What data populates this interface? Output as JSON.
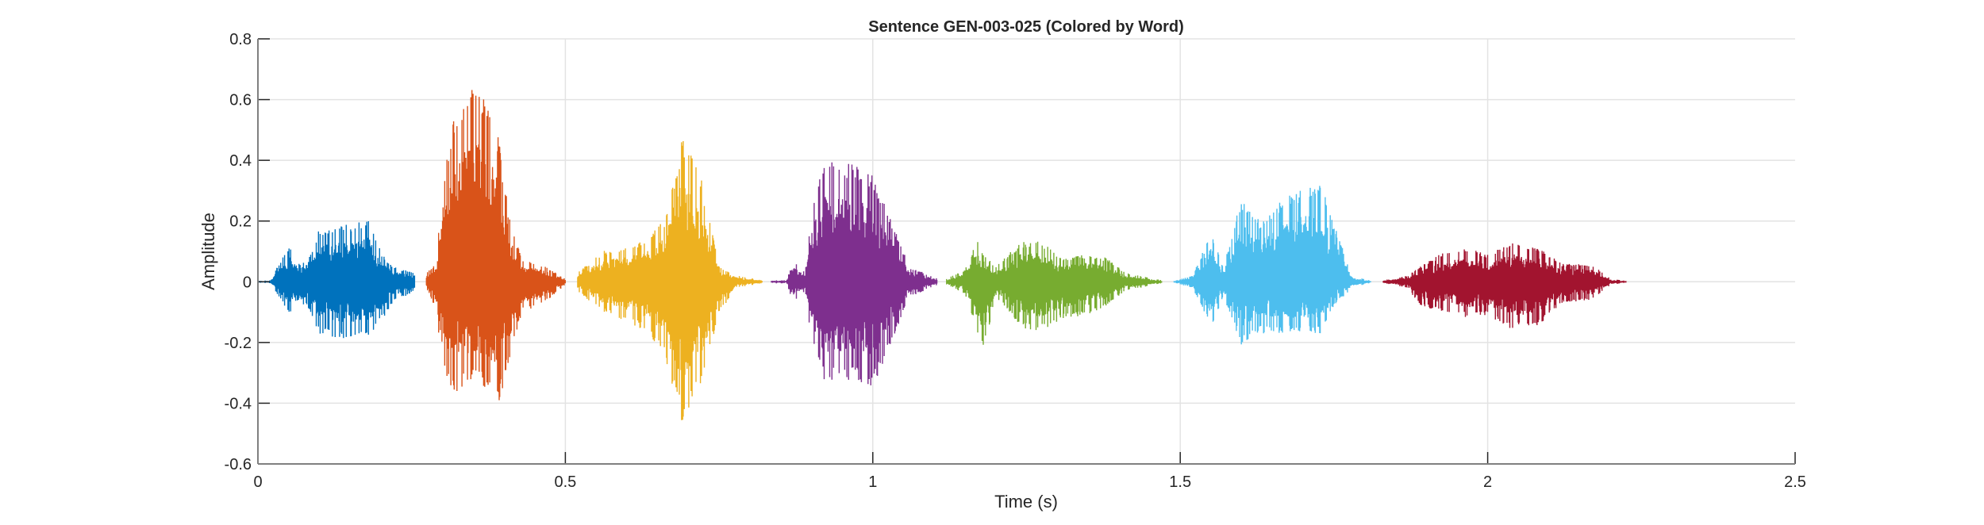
{
  "chart_data": {
    "type": "line",
    "title": "Sentence GEN-003-025 (Colored by Word)",
    "xlabel": "Time (s)",
    "ylabel": "Amplitude",
    "xlim": [
      0,
      2.5
    ],
    "ylim": [
      -0.6,
      0.8
    ],
    "xticks": [
      0,
      0.5,
      1,
      1.5,
      2,
      2.5
    ],
    "xtick_labels": [
      "0",
      "0.5",
      "1",
      "1.5",
      "2",
      "2.5"
    ],
    "yticks": [
      -0.6,
      -0.4,
      -0.2,
      0,
      0.2,
      0.4,
      0.6,
      0.8
    ],
    "ytick_labels": [
      "-0.6",
      "-0.4",
      "-0.2",
      "0",
      "0.2",
      "0.4",
      "0.6",
      "0.8"
    ],
    "grid": true,
    "legend": "none",
    "series": [
      {
        "color": "#0072BD",
        "start": 0.0,
        "end": 0.255,
        "envelope": [
          [
            0,
            0.003,
            -0.003
          ],
          [
            0.02,
            0.005,
            -0.005
          ],
          [
            0.05,
            0.12,
            -0.1
          ],
          [
            0.08,
            0.06,
            -0.08
          ],
          [
            0.1,
            0.18,
            -0.17
          ],
          [
            0.15,
            0.19,
            -0.2
          ],
          [
            0.18,
            0.21,
            -0.18
          ],
          [
            0.2,
            0.1,
            -0.13
          ],
          [
            0.22,
            0.05,
            -0.07
          ],
          [
            0.255,
            0.03,
            -0.03
          ]
        ]
      },
      {
        "color": "#D95319",
        "start": 0.274,
        "end": 0.5,
        "envelope": [
          [
            0.274,
            0.03,
            -0.02
          ],
          [
            0.29,
            0.06,
            -0.1
          ],
          [
            0.3,
            0.35,
            -0.3
          ],
          [
            0.32,
            0.55,
            -0.37
          ],
          [
            0.35,
            0.68,
            -0.33
          ],
          [
            0.37,
            0.63,
            -0.35
          ],
          [
            0.39,
            0.5,
            -0.42
          ],
          [
            0.41,
            0.2,
            -0.25
          ],
          [
            0.43,
            0.07,
            -0.1
          ],
          [
            0.46,
            0.06,
            -0.08
          ],
          [
            0.5,
            0.01,
            -0.01
          ]
        ]
      },
      {
        "color": "#EDB120",
        "start": 0.52,
        "end": 0.82,
        "envelope": [
          [
            0.52,
            0.03,
            -0.03
          ],
          [
            0.56,
            0.1,
            -0.1
          ],
          [
            0.62,
            0.13,
            -0.15
          ],
          [
            0.66,
            0.2,
            -0.23
          ],
          [
            0.69,
            0.48,
            -0.47
          ],
          [
            0.72,
            0.35,
            -0.35
          ],
          [
            0.75,
            0.05,
            -0.1
          ],
          [
            0.78,
            0.02,
            -0.02
          ],
          [
            0.82,
            0.005,
            -0.005
          ]
        ]
      },
      {
        "color": "#7E2F8E",
        "start": 0.835,
        "end": 1.105,
        "envelope": [
          [
            0.835,
            0.005,
            -0.005
          ],
          [
            0.86,
            0.005,
            -0.005
          ],
          [
            0.87,
            0.07,
            -0.07
          ],
          [
            0.89,
            0.03,
            -0.03
          ],
          [
            0.9,
            0.25,
            -0.2
          ],
          [
            0.92,
            0.4,
            -0.33
          ],
          [
            0.95,
            0.4,
            -0.33
          ],
          [
            0.98,
            0.38,
            -0.33
          ],
          [
            1.0,
            0.35,
            -0.35
          ],
          [
            1.03,
            0.2,
            -0.2
          ],
          [
            1.06,
            0.05,
            -0.05
          ],
          [
            1.105,
            0.01,
            -0.01
          ]
        ]
      },
      {
        "color": "#77AC30",
        "start": 1.12,
        "end": 1.47,
        "envelope": [
          [
            1.12,
            0.01,
            -0.01
          ],
          [
            1.15,
            0.04,
            -0.04
          ],
          [
            1.17,
            0.14,
            -0.17
          ],
          [
            1.18,
            0.1,
            -0.23
          ],
          [
            1.2,
            0.05,
            -0.05
          ],
          [
            1.24,
            0.13,
            -0.15
          ],
          [
            1.27,
            0.14,
            -0.17
          ],
          [
            1.31,
            0.08,
            -0.12
          ],
          [
            1.35,
            0.09,
            -0.11
          ],
          [
            1.38,
            0.08,
            -0.08
          ],
          [
            1.41,
            0.03,
            -0.03
          ],
          [
            1.47,
            0.005,
            -0.005
          ]
        ]
      },
      {
        "color": "#4DBEEE",
        "start": 1.49,
        "end": 1.81,
        "envelope": [
          [
            1.49,
            0.003,
            -0.003
          ],
          [
            1.52,
            0.02,
            -0.02
          ],
          [
            1.55,
            0.16,
            -0.15
          ],
          [
            1.57,
            0.05,
            -0.05
          ],
          [
            1.6,
            0.28,
            -0.21
          ],
          [
            1.63,
            0.2,
            -0.17
          ],
          [
            1.68,
            0.3,
            -0.17
          ],
          [
            1.73,
            0.32,
            -0.17
          ],
          [
            1.75,
            0.19,
            -0.08
          ],
          [
            1.78,
            0.02,
            -0.02
          ],
          [
            1.81,
            0.003,
            -0.003
          ]
        ]
      },
      {
        "color": "#A2142F",
        "start": 1.83,
        "end": 2.225,
        "envelope": [
          [
            1.83,
            0.005,
            -0.005
          ],
          [
            1.87,
            0.02,
            -0.02
          ],
          [
            1.89,
            0.05,
            -0.08
          ],
          [
            1.93,
            0.1,
            -0.1
          ],
          [
            1.97,
            0.11,
            -0.12
          ],
          [
            2.0,
            0.09,
            -0.11
          ],
          [
            2.04,
            0.13,
            -0.16
          ],
          [
            2.08,
            0.12,
            -0.15
          ],
          [
            2.12,
            0.06,
            -0.07
          ],
          [
            2.17,
            0.06,
            -0.06
          ],
          [
            2.2,
            0.01,
            -0.01
          ],
          [
            2.225,
            0.003,
            -0.003
          ]
        ]
      }
    ]
  }
}
